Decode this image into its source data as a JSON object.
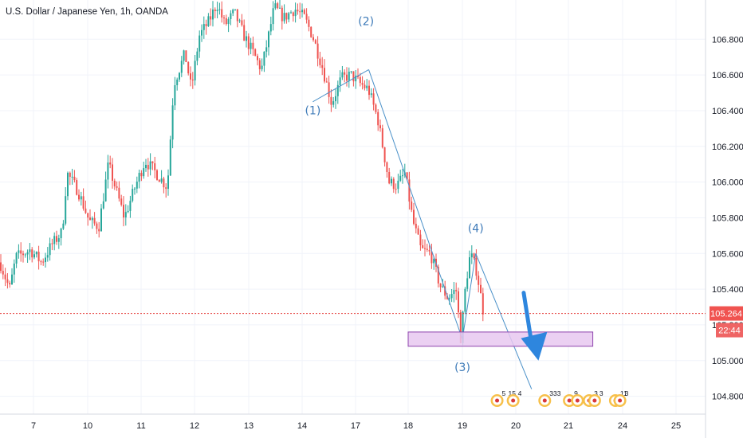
{
  "title": "U.S. Dollar / Japanese Yen, 1h, OANDA",
  "price_badge": "105.264",
  "time_badge": "22:44",
  "colors": {
    "up": "#26a69a",
    "down": "#ef5350",
    "wave_line": "#4a90c8",
    "wave_text": "#3d7ab8",
    "arrow": "#2e86de",
    "zone_fill": "#e7c8f0",
    "zone_stroke": "#8e44ad",
    "price_line": "#e53935",
    "badge_price": "#f05350",
    "badge_time": "#ef6464"
  },
  "wave_labels": [
    {
      "text": "(1)",
      "x": 14.6,
      "y": 106.38
    },
    {
      "text": "(2)",
      "x": 17.2,
      "y": 106.88
    },
    {
      "text": "(3)",
      "x": 19.0,
      "y": 104.94
    },
    {
      "text": "(4)",
      "x": 19.25,
      "y": 105.72
    }
  ],
  "wave_path": [
    [
      14.6,
      106.45
    ],
    [
      17.25,
      106.63
    ],
    [
      19.0,
      105.12
    ],
    [
      19.25,
      105.6
    ],
    [
      20.3,
      104.84
    ]
  ],
  "arrow": {
    "from": [
      20.15,
      105.38
    ],
    "to": [
      20.4,
      105.0
    ]
  },
  "support_zone": {
    "x0": 18.0,
    "x1": 22.35,
    "y0": 105.16,
    "y1": 105.08
  },
  "events": [
    {
      "x": 19.65,
      "n": "5",
      "m": "15"
    },
    {
      "x": 19.95,
      "n": "4"
    },
    {
      "x": 20.55,
      "n": "333"
    },
    {
      "x": 21.05,
      "n": "9"
    },
    {
      "x": 21.5,
      "n": ""
    },
    {
      "x": 22.15,
      "n": "3"
    },
    {
      "x": 22.45,
      "n": "3"
    },
    {
      "x": 23.6,
      "n": "11"
    },
    {
      "x": 23.85,
      "n": "3"
    }
  ],
  "chart_data": {
    "type": "candlestick",
    "title": "U.S. Dollar / Japanese Yen, 1h, OANDA",
    "x_ticks": [
      "7",
      "10",
      "11",
      "12",
      "13",
      "14",
      "17",
      "18",
      "19",
      "20",
      "21",
      "24",
      "25"
    ],
    "y_ticks": [
      "104.800",
      "105.000",
      "105.200",
      "105.400",
      "105.600",
      "105.800",
      "106.000",
      "106.200",
      "106.400",
      "106.600",
      "106.800"
    ],
    "ylim": [
      104.7,
      107.02
    ],
    "last_price": 105.264,
    "ohlc_approx": [
      {
        "date": "7",
        "price": 105.65
      },
      {
        "date": "10",
        "price": 105.8
      },
      {
        "date": "11",
        "price": 106.1
      },
      {
        "date": "12",
        "price": 106.75
      },
      {
        "date": "13",
        "price": 106.7
      },
      {
        "date": "14",
        "price": 106.95
      },
      {
        "date": "17",
        "price": 106.55
      },
      {
        "date": "18",
        "price": 106.0
      },
      {
        "date": "19",
        "price": 105.3
      }
    ]
  }
}
